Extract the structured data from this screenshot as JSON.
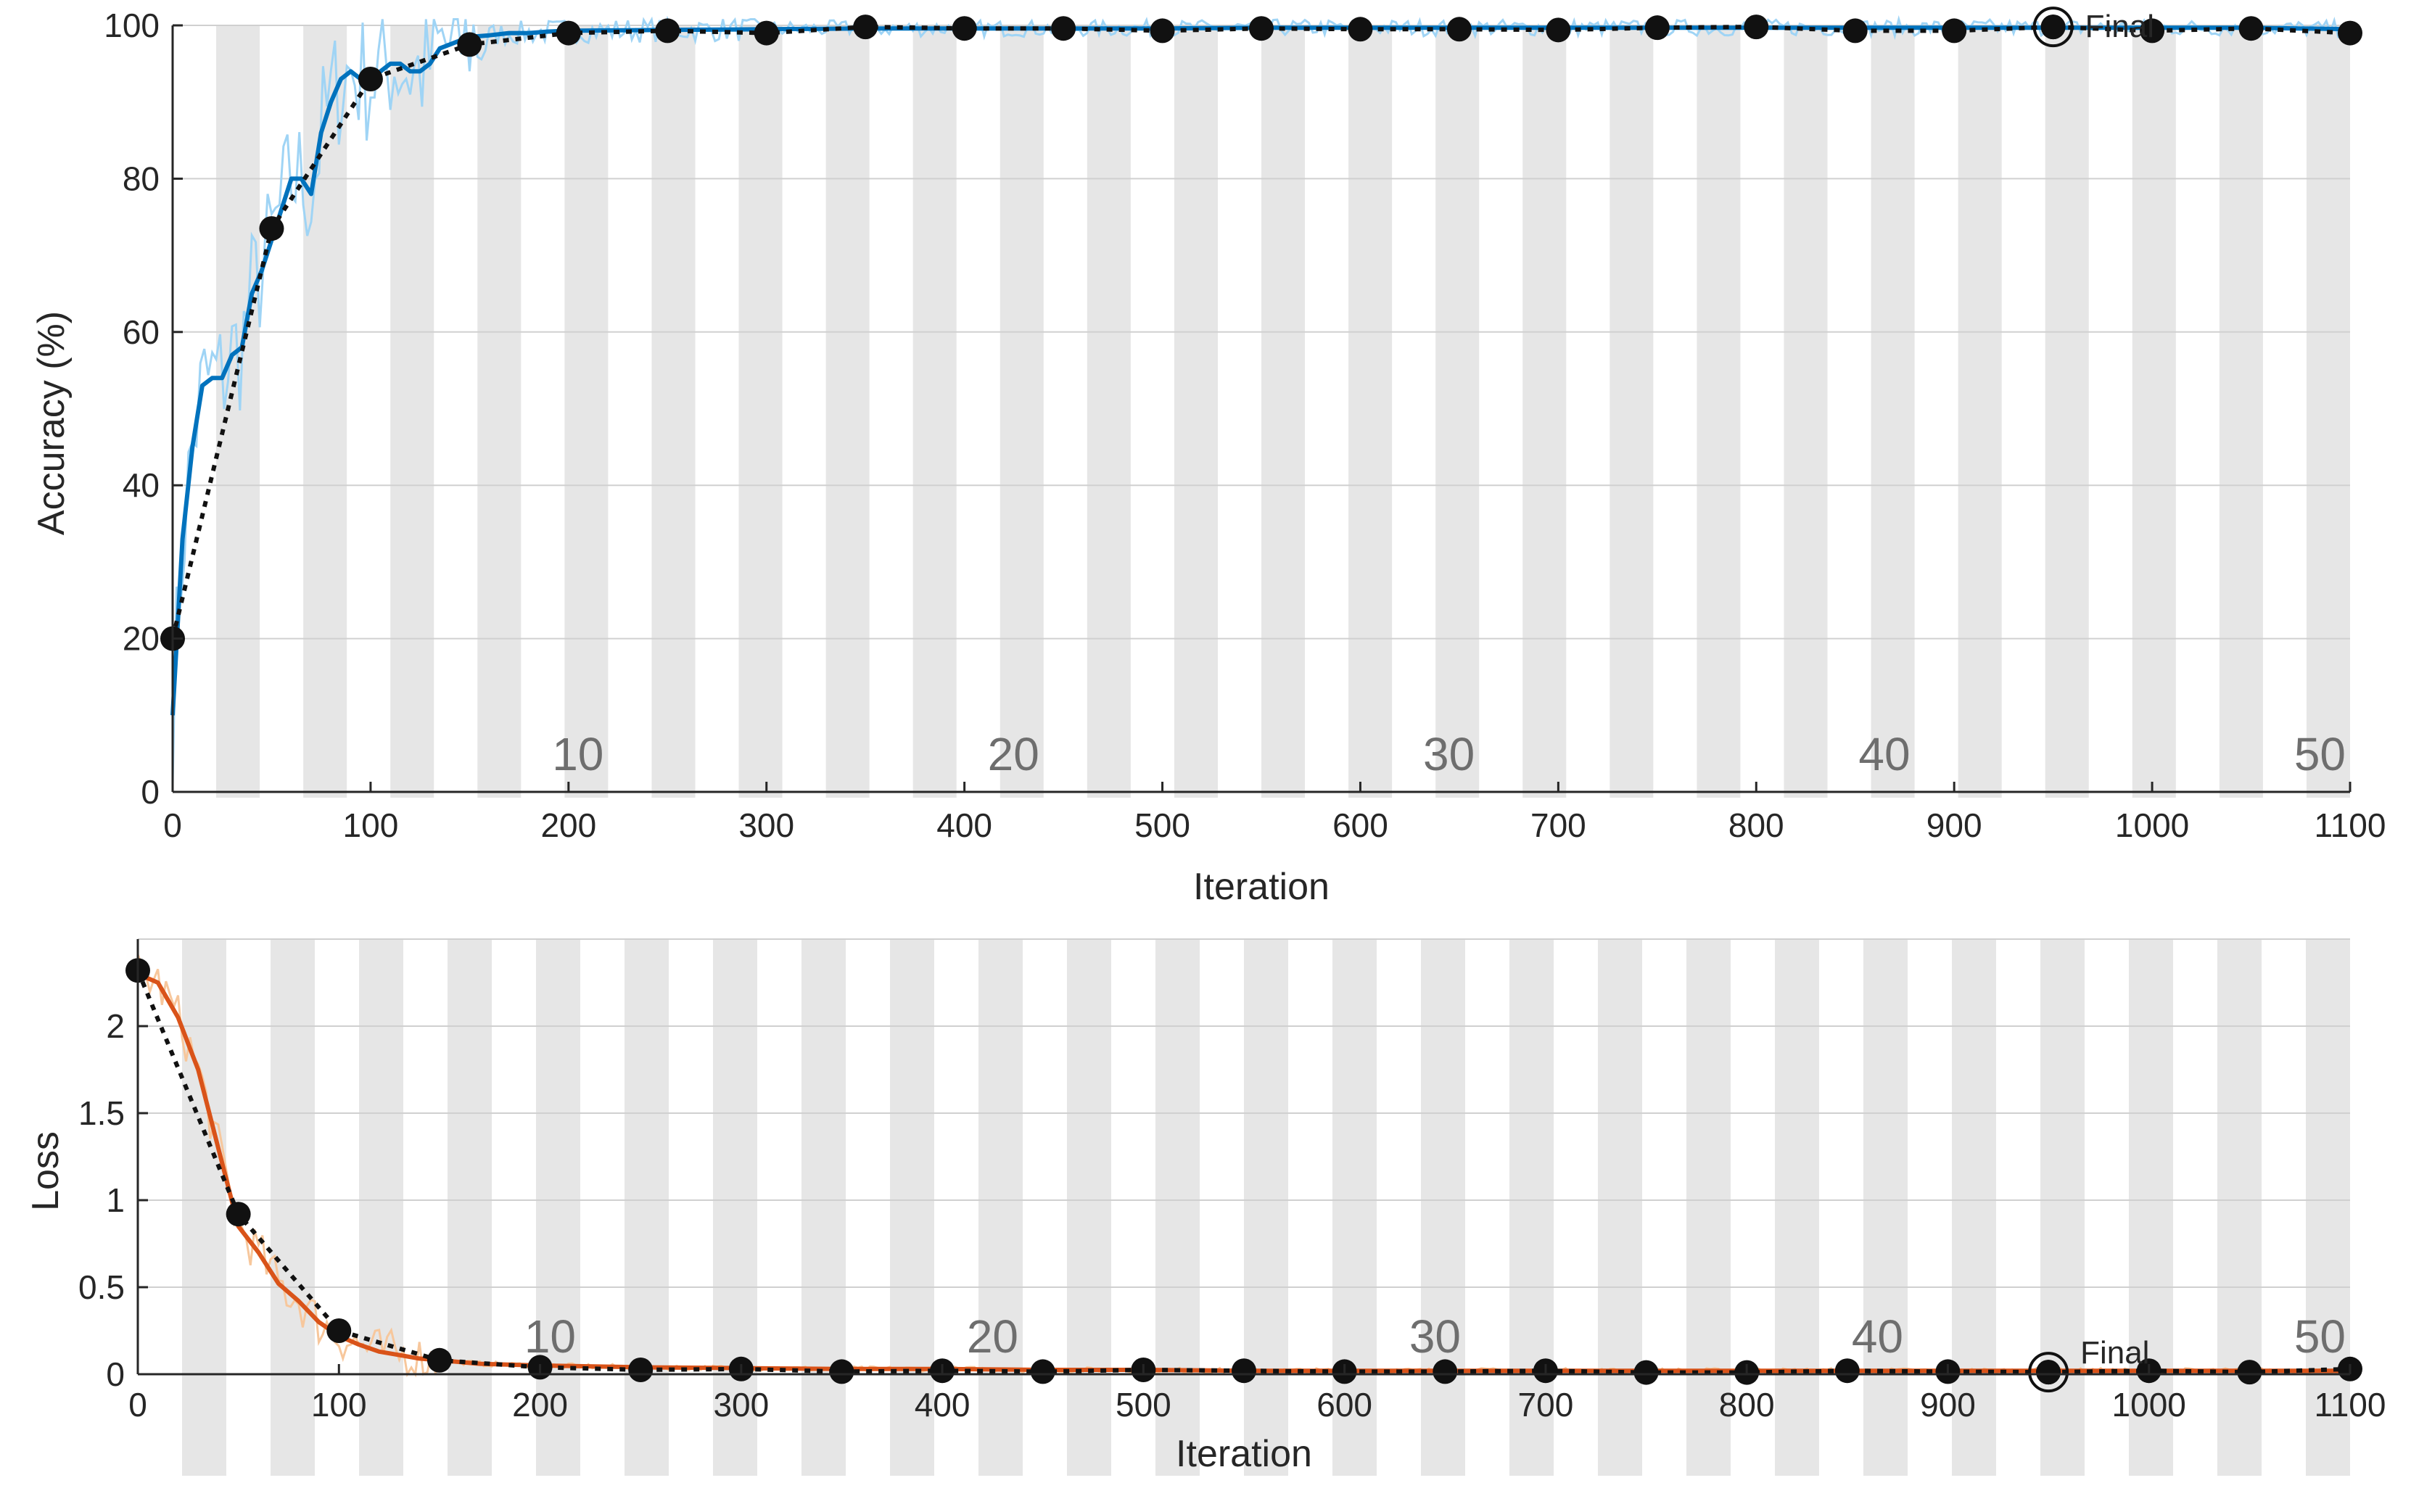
{
  "colors": {
    "accuracy_smoothed": "#0072BD",
    "accuracy_raw": "#9fd4f5",
    "loss_smoothed": "#D95319",
    "loss_raw": "#f7c79c",
    "validation": "#111111",
    "epoch_band": "#e6e6e6",
    "grid": "#d0d0d0"
  },
  "chart_data": [
    {
      "type": "line",
      "title": "",
      "xlabel": "Iteration",
      "ylabel": "Accuracy (%)",
      "xlim": [
        0,
        1100
      ],
      "ylim": [
        0,
        100
      ],
      "x_ticks": [
        0,
        100,
        200,
        300,
        400,
        500,
        600,
        700,
        800,
        900,
        1000,
        1100
      ],
      "y_ticks": [
        0,
        20,
        40,
        60,
        80,
        100
      ],
      "grid": "horizontal",
      "epoch_bands": {
        "iterations_per_epoch": 22,
        "total_epochs": 50
      },
      "epoch_labels": [
        {
          "label": "10",
          "iteration": 220
        },
        {
          "label": "20",
          "iteration": 440
        },
        {
          "label": "30",
          "iteration": 660
        },
        {
          "label": "40",
          "iteration": 880
        },
        {
          "label": "50",
          "iteration": 1100
        }
      ],
      "series": [
        {
          "role": "training-smoothed",
          "x": [
            0,
            5,
            10,
            15,
            20,
            25,
            30,
            35,
            40,
            45,
            50,
            55,
            60,
            65,
            70,
            75,
            80,
            85,
            90,
            95,
            100,
            105,
            110,
            115,
            120,
            125,
            130,
            135,
            140,
            145,
            150,
            160,
            170,
            180,
            190,
            200,
            250,
            300,
            350,
            400,
            450,
            500,
            550,
            600,
            650,
            700,
            750,
            800,
            850,
            900,
            950,
            1000,
            1050,
            1100
          ],
          "y": [
            10,
            33,
            45,
            53,
            54,
            54,
            57,
            58,
            65,
            68,
            72,
            76,
            80,
            80,
            78,
            86,
            90,
            93,
            94,
            93,
            93,
            94,
            95,
            95,
            94,
            94,
            95,
            97,
            97.5,
            98,
            98.5,
            98.7,
            99,
            99,
            99.2,
            99.3,
            99.4,
            99.5,
            99.6,
            99.6,
            99.6,
            99.6,
            99.7,
            99.7,
            99.7,
            99.7,
            99.7,
            99.7,
            99.7,
            99.7,
            99.7,
            99.7,
            99.7,
            99.5
          ]
        },
        {
          "role": "validation",
          "x": [
            0,
            50,
            100,
            150,
            200,
            250,
            300,
            350,
            400,
            450,
            500,
            550,
            600,
            650,
            700,
            750,
            800,
            850,
            900,
            950,
            1000,
            1050,
            1100
          ],
          "y": [
            20,
            73.5,
            93,
            97.5,
            99,
            99.3,
            99,
            99.8,
            99.6,
            99.6,
            99.3,
            99.6,
            99.5,
            99.5,
            99.4,
            99.7,
            99.8,
            99.3,
            99.3,
            99.8,
            99.3,
            99.6,
            99
          ]
        }
      ],
      "final_marker": {
        "label": "Final",
        "x": 950,
        "y": 99.8
      }
    },
    {
      "type": "line",
      "title": "",
      "xlabel": "Iteration",
      "ylabel": "Loss",
      "xlim": [
        0,
        1100
      ],
      "ylim": [
        0,
        2.5
      ],
      "x_ticks": [
        0,
        100,
        200,
        300,
        400,
        500,
        600,
        700,
        800,
        900,
        1000,
        1100
      ],
      "y_ticks": [
        0,
        0.5,
        1,
        1.5,
        2
      ],
      "grid": "horizontal",
      "epoch_bands": {
        "iterations_per_epoch": 22,
        "total_epochs": 50
      },
      "epoch_labels": [
        {
          "label": "10",
          "iteration": 220
        },
        {
          "label": "20",
          "iteration": 440
        },
        {
          "label": "30",
          "iteration": 660
        },
        {
          "label": "40",
          "iteration": 880
        },
        {
          "label": "50",
          "iteration": 1100
        }
      ],
      "series": [
        {
          "role": "training-smoothed",
          "x": [
            0,
            10,
            20,
            30,
            40,
            50,
            60,
            70,
            80,
            90,
            100,
            110,
            120,
            130,
            140,
            150,
            170,
            200,
            250,
            300,
            350,
            400,
            450,
            500,
            550,
            600,
            650,
            700,
            750,
            800,
            850,
            900,
            950,
            1000,
            1050,
            1100
          ],
          "y": [
            2.3,
            2.25,
            2.05,
            1.75,
            1.3,
            0.85,
            0.7,
            0.52,
            0.42,
            0.3,
            0.22,
            0.17,
            0.13,
            0.11,
            0.09,
            0.08,
            0.06,
            0.05,
            0.04,
            0.035,
            0.03,
            0.03,
            0.025,
            0.025,
            0.02,
            0.02,
            0.02,
            0.02,
            0.02,
            0.02,
            0.02,
            0.02,
            0.02,
            0.02,
            0.02,
            0.02
          ]
        },
        {
          "role": "validation",
          "x": [
            0,
            50,
            100,
            150,
            200,
            250,
            300,
            350,
            400,
            450,
            500,
            550,
            600,
            650,
            700,
            750,
            800,
            850,
            900,
            950,
            1000,
            1050,
            1100
          ],
          "y": [
            2.32,
            0.92,
            0.25,
            0.08,
            0.04,
            0.025,
            0.03,
            0.015,
            0.02,
            0.015,
            0.025,
            0.02,
            0.015,
            0.015,
            0.02,
            0.01,
            0.01,
            0.02,
            0.015,
            0.012,
            0.02,
            0.012,
            0.03
          ]
        }
      ],
      "final_marker": {
        "label": "Final",
        "x": 950,
        "y": 0.012
      }
    }
  ]
}
